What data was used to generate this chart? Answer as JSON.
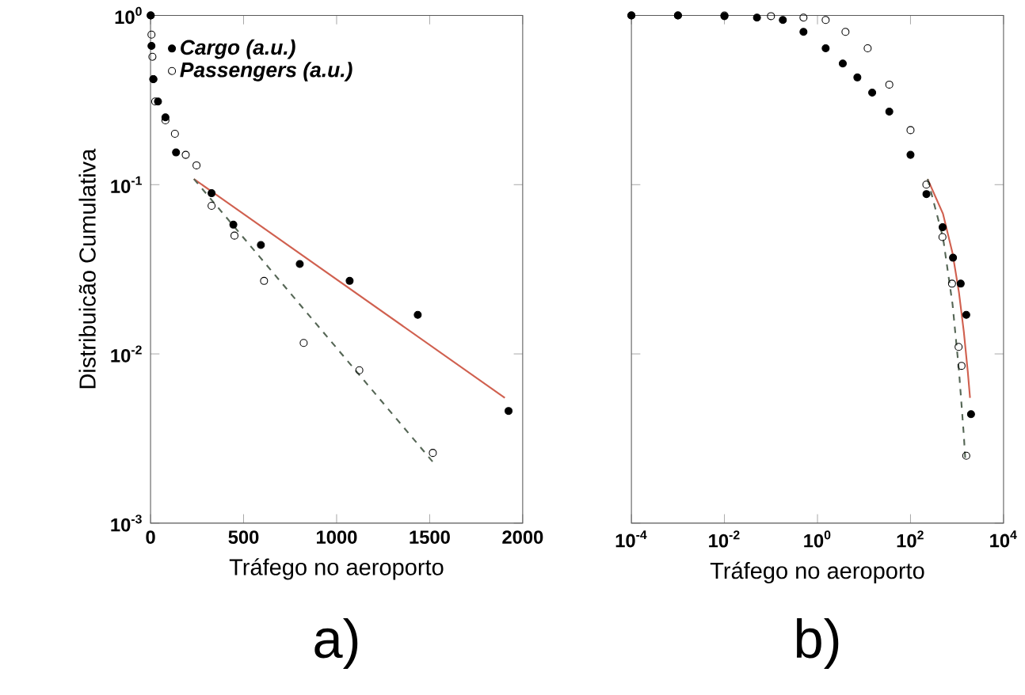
{
  "chart_data": [
    {
      "type": "scatter",
      "xlabel": "Tráfego no aeroporto",
      "ylabel": "Distribuicão Cumulativa",
      "log": "y",
      "legend": "top left",
      "xlim": [
        0,
        2000
      ],
      "xticks": [
        0,
        500,
        1000,
        1500,
        2000
      ],
      "ylim": [
        0.001,
        1
      ],
      "yticks": [
        {
          "value": 1,
          "label": "10$^{0}$"
        },
        {
          "value": 0.1,
          "label": "10$^{-1}$"
        },
        {
          "value": 0.01,
          "label": "10$^{-2}$"
        },
        {
          "value": 0.001,
          "label": "10$^{-3}$"
        }
      ],
      "annotations": [
        "a)"
      ],
      "series": [
        {
          "name": "Cargo (a.u.)",
          "marker": "circle",
          "color": "#000000",
          "x": [
            1,
            5,
            15,
            40,
            80,
            137,
            328,
            445,
            593,
            802,
            1070,
            1436,
            1924
          ],
          "values": [
            1.0,
            0.66,
            0.42,
            0.31,
            0.25,
            0.155,
            0.089,
            0.058,
            0.044,
            0.034,
            0.027,
            0.017,
            0.0046
          ]
        },
        {
          "name": "Passengers (a.u.)",
          "marker": "circle",
          "color": "#000000",
          "x": [
            1,
            5,
            10,
            15,
            25,
            80,
            131,
            189,
            247,
            328,
            451,
            610,
            823,
            1122,
            1517
          ],
          "values": [
            1.0,
            0.77,
            0.57,
            0.42,
            0.31,
            0.24,
            0.2,
            0.15,
            0.13,
            0.075,
            0.05,
            0.027,
            0.0116,
            0.008,
            0.0026
          ]
        },
        {
          "type": "line",
          "marker": "none",
          "line_style": "solid",
          "color": "#d0604f",
          "x": [
            233,
            1904
          ],
          "values": [
            0.108,
            0.0055
          ]
        },
        {
          "type": "line",
          "marker": "none",
          "line_style": "dashed",
          "color": "#556655",
          "x": [
            233,
            1517
          ],
          "values": [
            0.108,
            0.0023
          ]
        }
      ]
    },
    {
      "type": "scatter",
      "xlabel": "Tráfego no aeroporto",
      "log": "xy",
      "tick_labels": "x",
      "xlim": [
        0.0001,
        10000
      ],
      "xticks": [
        {
          "value": 0.0001,
          "label": "10$^{-4}$"
        },
        {
          "value": 0.01,
          "label": "10$^{-2}$"
        },
        {
          "value": 1,
          "label": "10$^{0}$"
        },
        {
          "value": 100,
          "label": "10$^{2}$"
        },
        {
          "value": 10000,
          "label": "10$^{4}$"
        }
      ],
      "ylim": [
        0.001,
        1
      ],
      "yticks": [
        {
          "value": 1,
          "label": null
        },
        {
          "value": 0.1,
          "label": null
        },
        {
          "value": 0.01,
          "label": null
        },
        {
          "value": 0.001,
          "label": null
        }
      ],
      "annotations": [
        "b)"
      ],
      "series": [
        {
          "marker": "circle",
          "color": "#000000",
          "x": [
            0.0001,
            0.001,
            0.01,
            0.05,
            0.18,
            0.5,
            1.5,
            3.5,
            7.2,
            15,
            35,
            100,
            220,
            490,
            820,
            1200,
            1580,
            2000
          ],
          "values": [
            1.0,
            1.0,
            0.99,
            0.97,
            0.94,
            0.8,
            0.64,
            0.52,
            0.43,
            0.35,
            0.27,
            0.15,
            0.088,
            0.056,
            0.037,
            0.026,
            0.017,
            0.0044
          ]
        },
        {
          "marker": "circle",
          "color": "#000000",
          "x": [
            0.0001,
            0.001,
            0.01,
            0.1,
            0.5,
            1.5,
            4,
            12,
            35,
            100,
            219,
            486,
            780,
            1080,
            1250,
            1580
          ],
          "values": [
            1.0,
            1.0,
            1.0,
            0.99,
            0.97,
            0.94,
            0.8,
            0.64,
            0.39,
            0.21,
            0.1,
            0.049,
            0.026,
            0.011,
            0.0085,
            0.0025
          ]
        },
        {
          "type": "line",
          "marker": "none",
          "line_style": "solid",
          "color": "#d0604f",
          "x": [
            233,
            500,
            800,
            1100,
            1400,
            1700,
            1904
          ],
          "values": [
            0.108,
            0.0672,
            0.0394,
            0.0231,
            0.0135,
            0.0079,
            0.0055
          ]
        },
        {
          "type": "line",
          "marker": "none",
          "line_style": "dashed",
          "color": "#556655",
          "x": [
            233,
            500,
            800,
            1100,
            1400,
            1517
          ],
          "values": [
            0.108,
            0.0486,
            0.0197,
            0.008,
            0.0033,
            0.0023
          ]
        }
      ]
    }
  ]
}
